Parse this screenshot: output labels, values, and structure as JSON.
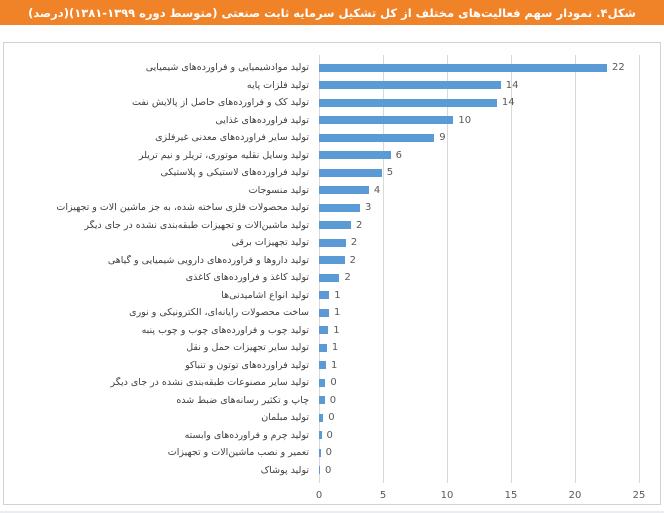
{
  "chart_data": {
    "type": "bar",
    "orientation": "horizontal",
    "title": "شکل۴. نمودار سهم فعالیت‌های مختلف از کل تشکیل سرمایه ثابت صنعتی (متوسط دوره ۱۳۹۹-۱۳۸۱)(درصد)",
    "xlabel": "",
    "ylabel": "",
    "xlim": [
      0,
      25
    ],
    "x_ticks": [
      0,
      5,
      10,
      15,
      20,
      25
    ],
    "grid": true,
    "value_labels": true,
    "bar_color": "#5B9BD5",
    "grid_color": "#D9D9D9",
    "banner_color": "#F08228",
    "categories": [
      "تولید موادشیمیایی و فراورده‌های شیمیایی",
      "تولید فلزات پایه",
      "تولید کک و فراورده‌های حاصل از پالایش نفت",
      "تولید فراورده‌های غذایی",
      "تولید سایر فراورده‌های معدنی غیرفلزی",
      "تولید وسایل نقلیه موتوری، تریلر و نیم تریلر",
      "تولید فراورده‌های لاستیکی و پلاستیکی",
      "تولید منسوجات",
      "تولید محصولات فلزی ساخته شده، به جز ماشین آلات و تجهیزات",
      "تولید ماشین‌آلات و تجهیزات طبقه‌بندی نشده در جای دیگر",
      "تولید تجهیزات برقی",
      "تولید داروها و فراورده‌های دارویی شیمیایی و گیاهی",
      "تولید کاغذ و فراورده‌های کاغذی",
      "تولید انواع آشامیدنی‌ها",
      "ساخت محصولات رایانه‌ای، الکترونیکی و نوری",
      "تولید چوب و فراورده‌های چوب و چوب پنبه",
      "تولید سایر تجهیزات حمل و نقل",
      "تولید فراورده‌های توتون و تنباکو",
      "تولید سایر مصنوعات طبقه‌بندی نشده در جای دیگر",
      "چاپ و تکثیر رسانه‌های ضبط شده",
      "تولید مبلمان",
      "تولید چرم و فراورده‌های وابسته",
      "تعمیر و نصب ماشین‌آلات و تجهیزات",
      "تولید پوشاک"
    ],
    "values": [
      22,
      14,
      14,
      10,
      9,
      6,
      5,
      4,
      3,
      2,
      2,
      2,
      2,
      1,
      1,
      1,
      1,
      1,
      0,
      0,
      0,
      0,
      0,
      0
    ],
    "bar_lengths": [
      22.5,
      14.2,
      13.9,
      10.5,
      9.0,
      5.6,
      4.9,
      3.9,
      3.2,
      2.5,
      2.1,
      2.0,
      1.6,
      0.8,
      0.78,
      0.72,
      0.62,
      0.55,
      0.5,
      0.45,
      0.33,
      0.2,
      0.13,
      0.08
    ]
  }
}
